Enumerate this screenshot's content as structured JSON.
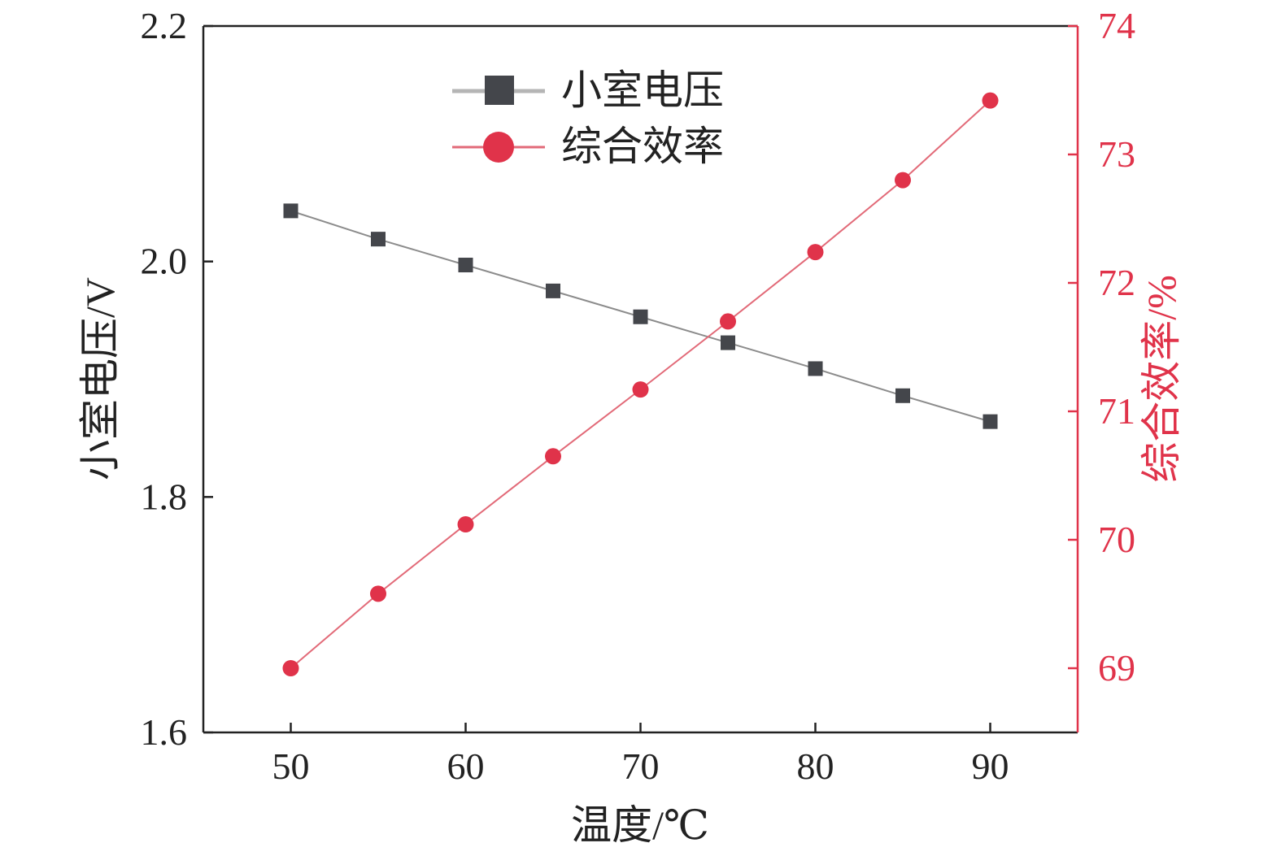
{
  "chart_data": {
    "type": "line",
    "x": [
      50,
      55,
      60,
      65,
      70,
      75,
      80,
      85,
      90
    ],
    "xlabel": "温度/℃",
    "xlim": [
      45,
      95
    ],
    "xticks": [
      "50",
      "60",
      "70",
      "80",
      "90"
    ],
    "ylabel_left": "小室电压/V",
    "ylim_left": [
      1.6,
      2.2
    ],
    "yticks_left": [
      "1.6",
      "1.8",
      "2.0",
      "2.2"
    ],
    "ylabel_right": "综合效率/%",
    "ylim_right": [
      68.5,
      74
    ],
    "yticks_right": [
      "69",
      "70",
      "71",
      "72",
      "73",
      "74"
    ],
    "grid": false,
    "legend_position": "top-center",
    "series": [
      {
        "name": "小室电压",
        "axis": "left",
        "marker": "square",
        "color": "#44464b",
        "line_color": "#8c8c8c",
        "values": [
          2.043,
          2.019,
          1.997,
          1.975,
          1.953,
          1.931,
          1.909,
          1.886,
          1.864
        ]
      },
      {
        "name": "综合效率",
        "axis": "right",
        "marker": "circle",
        "color": "#e0334a",
        "line_color": "#e26a78",
        "values": [
          69.0,
          69.58,
          70.12,
          70.65,
          71.17,
          71.7,
          72.24,
          72.8,
          73.42
        ]
      }
    ],
    "colors": {
      "axis": "#222222",
      "right_axis": "#e0334a"
    }
  }
}
